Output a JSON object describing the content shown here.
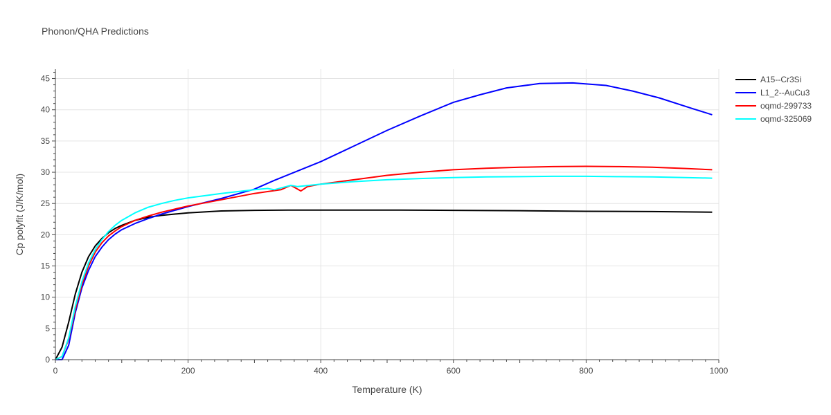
{
  "chart_data": {
    "type": "line",
    "title": "Phonon/QHA Predictions",
    "xlabel": "Temperature (K)",
    "ylabel": "Cp polyfit (J/K/mol)",
    "xlim": [
      0,
      1000
    ],
    "ylim": [
      0,
      46.5
    ],
    "xticks": [
      0,
      200,
      400,
      600,
      800,
      1000
    ],
    "yticks": [
      0,
      5,
      10,
      15,
      20,
      25,
      30,
      35,
      40,
      45
    ],
    "grid": true,
    "legend_position": "top-right",
    "series": [
      {
        "name": "A15--Cr3Si",
        "color": "#000000",
        "x": [
          0,
          10,
          20,
          30,
          40,
          50,
          60,
          70,
          80,
          90,
          100,
          120,
          140,
          160,
          180,
          200,
          250,
          300,
          350,
          400,
          450,
          500,
          520,
          600,
          700,
          800,
          900,
          990
        ],
        "y": [
          0,
          2,
          6,
          10.5,
          14,
          16.5,
          18.2,
          19.4,
          20.3,
          21,
          21.5,
          22.3,
          22.8,
          23.1,
          23.3,
          23.5,
          23.8,
          23.9,
          23.95,
          23.95,
          23.95,
          23.95,
          23.95,
          23.9,
          23.85,
          23.75,
          23.7,
          23.6
        ]
      },
      {
        "name": "L1_2--AuCu3",
        "color": "#0000ff",
        "x": [
          0,
          10,
          20,
          30,
          40,
          50,
          60,
          70,
          80,
          90,
          100,
          120,
          140,
          160,
          180,
          200,
          250,
          300,
          330,
          400,
          450,
          500,
          550,
          600,
          640,
          680,
          730,
          780,
          830,
          870,
          910,
          960,
          990
        ],
        "y": [
          0,
          0,
          2.3,
          7.5,
          11.5,
          14.3,
          16.5,
          18,
          19.2,
          20.1,
          20.8,
          21.8,
          22.6,
          23.3,
          23.9,
          24.5,
          25.8,
          27.3,
          28.7,
          31.7,
          34.2,
          36.7,
          39,
          41.2,
          42.4,
          43.5,
          44.2,
          44.3,
          43.9,
          43,
          41.9,
          40.2,
          39.2
        ]
      },
      {
        "name": "oqmd-299733",
        "color": "#ff0000",
        "x": [
          0,
          10,
          20,
          30,
          40,
          50,
          60,
          70,
          80,
          90,
          100,
          120,
          140,
          160,
          180,
          200,
          250,
          300,
          340,
          355,
          370,
          380,
          400,
          450,
          500,
          550,
          600,
          650,
          700,
          750,
          800,
          850,
          900,
          950,
          990
        ],
        "y": [
          0,
          0.5,
          3.3,
          8,
          12,
          15,
          17.2,
          18.7,
          19.8,
          20.6,
          21.3,
          22.3,
          23,
          23.6,
          24.1,
          24.6,
          25.6,
          26.6,
          27.2,
          27.9,
          27,
          27.7,
          28.1,
          28.8,
          29.5,
          30,
          30.4,
          30.65,
          30.8,
          30.9,
          30.95,
          30.9,
          30.8,
          30.6,
          30.4
        ]
      },
      {
        "name": "oqmd-325069",
        "color": "#00ffff",
        "x": [
          0,
          10,
          20,
          30,
          40,
          50,
          60,
          70,
          80,
          90,
          100,
          120,
          140,
          160,
          180,
          200,
          250,
          300,
          320,
          330,
          355,
          365,
          400,
          450,
          500,
          550,
          600,
          650,
          700,
          750,
          800,
          850,
          900,
          950,
          990
        ],
        "y": [
          0,
          0.5,
          3.5,
          8.5,
          12.5,
          15.5,
          17.6,
          19.2,
          20.5,
          21.5,
          22.3,
          23.5,
          24.4,
          25,
          25.5,
          25.9,
          26.6,
          27.2,
          27.4,
          27.2,
          27.9,
          27.7,
          28.1,
          28.5,
          28.8,
          29,
          29.15,
          29.25,
          29.3,
          29.35,
          29.35,
          29.3,
          29.25,
          29.15,
          29.05
        ]
      }
    ]
  }
}
